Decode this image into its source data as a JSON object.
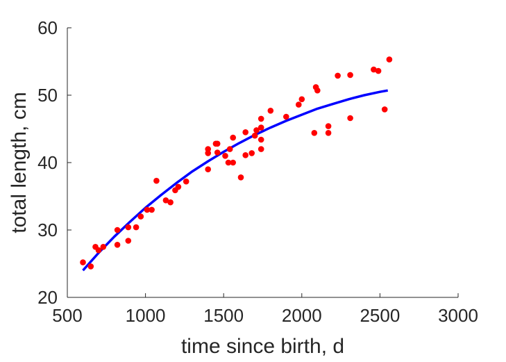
{
  "chart_data": {
    "type": "scatter",
    "title": "",
    "xlabel": "time since birth, d",
    "ylabel": "total length, cm",
    "xlim": [
      500,
      3000
    ],
    "ylim": [
      20,
      60
    ],
    "xticks": [
      500,
      1000,
      1500,
      2000,
      2500,
      3000
    ],
    "yticks": [
      20,
      30,
      40,
      50,
      60
    ],
    "grid": false,
    "legend": "none",
    "series": [
      {
        "kind": "scatter",
        "color": "#ff0000",
        "points": [
          [
            600,
            25.2
          ],
          [
            650,
            24.6
          ],
          [
            680,
            27.5
          ],
          [
            700,
            27.0
          ],
          [
            730,
            27.5
          ],
          [
            820,
            30.0
          ],
          [
            820,
            27.8
          ],
          [
            890,
            30.4
          ],
          [
            890,
            28.4
          ],
          [
            940,
            30.4
          ],
          [
            970,
            32.0
          ],
          [
            1010,
            33.0
          ],
          [
            1040,
            33.0
          ],
          [
            1070,
            37.3
          ],
          [
            1130,
            34.4
          ],
          [
            1160,
            34.1
          ],
          [
            1190,
            35.9
          ],
          [
            1210,
            36.4
          ],
          [
            1260,
            37.2
          ],
          [
            1400,
            42.0
          ],
          [
            1400,
            41.4
          ],
          [
            1400,
            39.0
          ],
          [
            1450,
            42.8
          ],
          [
            1460,
            42.8
          ],
          [
            1460,
            41.5
          ],
          [
            1510,
            41.0
          ],
          [
            1530,
            40.0
          ],
          [
            1540,
            42.0
          ],
          [
            1560,
            43.7
          ],
          [
            1560,
            40.0
          ],
          [
            1610,
            37.8
          ],
          [
            1640,
            44.5
          ],
          [
            1640,
            41.1
          ],
          [
            1680,
            41.4
          ],
          [
            1700,
            44.0
          ],
          [
            1710,
            44.8
          ],
          [
            1740,
            46.5
          ],
          [
            1740,
            45.2
          ],
          [
            1740,
            43.4
          ],
          [
            1740,
            42.0
          ],
          [
            1800,
            47.7
          ],
          [
            1900,
            46.8
          ],
          [
            1980,
            48.6
          ],
          [
            2000,
            49.4
          ],
          [
            2080,
            44.4
          ],
          [
            2090,
            51.2
          ],
          [
            2100,
            50.7
          ],
          [
            2170,
            45.4
          ],
          [
            2170,
            44.4
          ],
          [
            2230,
            52.9
          ],
          [
            2310,
            53.0
          ],
          [
            2310,
            46.6
          ],
          [
            2460,
            53.8
          ],
          [
            2490,
            53.6
          ],
          [
            2530,
            47.9
          ],
          [
            2560,
            55.3
          ]
        ]
      },
      {
        "kind": "line",
        "color": "#0000ff",
        "x": [
          600,
          700,
          800,
          900,
          1000,
          1100,
          1200,
          1300,
          1400,
          1500,
          1600,
          1700,
          1800,
          1900,
          2000,
          2100,
          2200,
          2300,
          2400,
          2500,
          2550
        ],
        "y": [
          24.0,
          26.6,
          29.0,
          31.2,
          33.3,
          35.2,
          37.0,
          38.7,
          40.2,
          41.6,
          42.9,
          44.1,
          45.2,
          46.2,
          47.1,
          48.0,
          48.7,
          49.4,
          50.0,
          50.5,
          50.7
        ]
      }
    ]
  }
}
